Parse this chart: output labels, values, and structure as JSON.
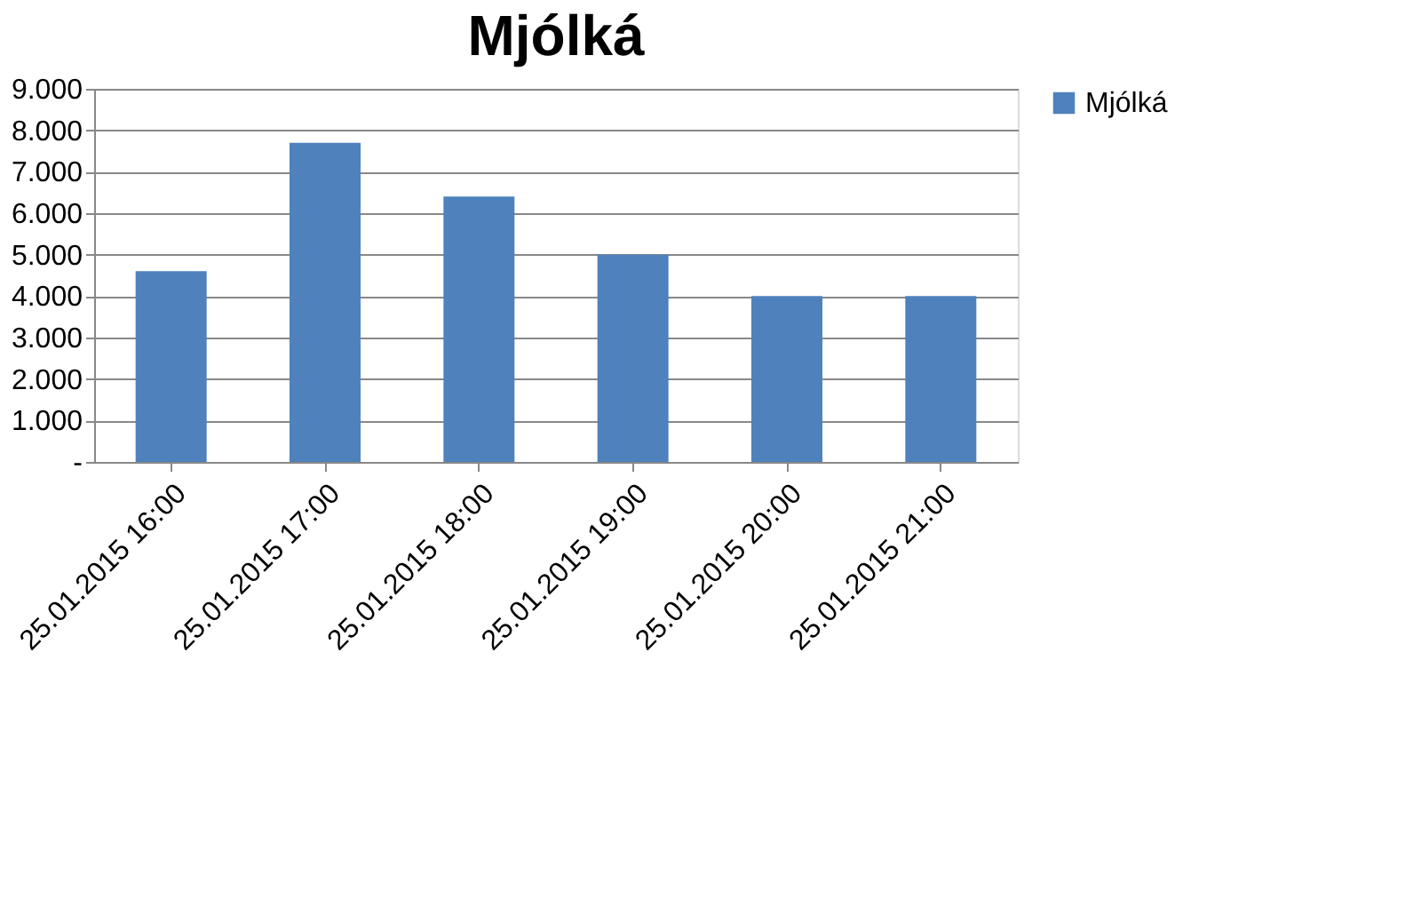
{
  "chart_data": {
    "type": "bar",
    "title": "Mjólká",
    "categories": [
      "25.01.2015 16:00",
      "25.01.2015 17:00",
      "25.01.2015 18:00",
      "25.01.2015 19:00",
      "25.01.2015 20:00",
      "25.01.2015 21:00"
    ],
    "series": [
      {
        "name": "Mjólká",
        "color": "#4f81bd",
        "values": [
          4600,
          7700,
          6400,
          5000,
          4000,
          4000
        ]
      }
    ],
    "ylim": [
      0,
      9000
    ],
    "yticks": [
      {
        "value": 0,
        "label": "-"
      },
      {
        "value": 1000,
        "label": "1.000"
      },
      {
        "value": 2000,
        "label": "2.000"
      },
      {
        "value": 3000,
        "label": "3.000"
      },
      {
        "value": 4000,
        "label": "4.000"
      },
      {
        "value": 5000,
        "label": "5.000"
      },
      {
        "value": 6000,
        "label": "6.000"
      },
      {
        "value": 7000,
        "label": "7.000"
      },
      {
        "value": 8000,
        "label": "8.000"
      },
      {
        "value": 9000,
        "label": "9.000"
      }
    ],
    "grid": "y",
    "legend": "right"
  }
}
